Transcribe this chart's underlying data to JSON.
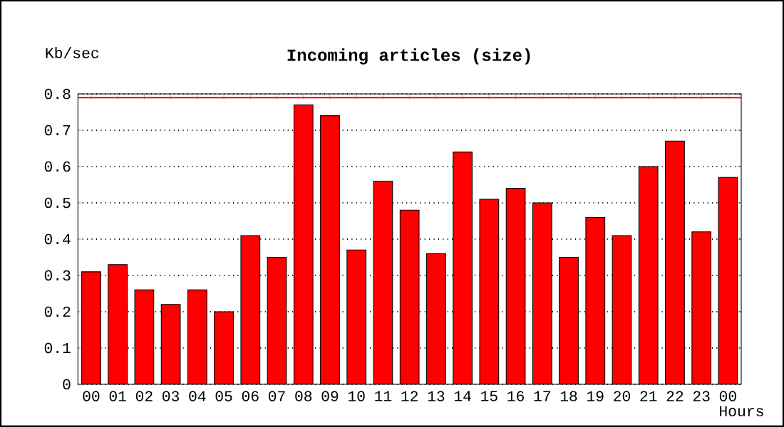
{
  "chart_data": {
    "type": "bar",
    "title": "Incoming articles (size)",
    "xlabel": "Hours",
    "ylabel": "Kb/sec",
    "categories": [
      "00",
      "01",
      "02",
      "03",
      "04",
      "05",
      "06",
      "07",
      "08",
      "09",
      "10",
      "11",
      "12",
      "13",
      "14",
      "15",
      "16",
      "17",
      "18",
      "19",
      "20",
      "21",
      "22",
      "23",
      "00"
    ],
    "values": [
      0.31,
      0.33,
      0.26,
      0.22,
      0.26,
      0.2,
      0.41,
      0.35,
      0.77,
      0.74,
      0.37,
      0.56,
      0.48,
      0.36,
      0.64,
      0.51,
      0.54,
      0.5,
      0.35,
      0.46,
      0.41,
      0.6,
      0.67,
      0.42,
      0.57
    ],
    "color": "#ff0000",
    "ylim": [
      0,
      0.8
    ],
    "yticks": [
      0,
      0.1,
      0.2,
      0.3,
      0.4,
      0.5,
      0.6,
      0.7,
      0.8
    ],
    "grid": "y",
    "ref_lines": [
      {
        "axis": "y",
        "value": 0.79,
        "color": "#ff0000"
      }
    ]
  }
}
